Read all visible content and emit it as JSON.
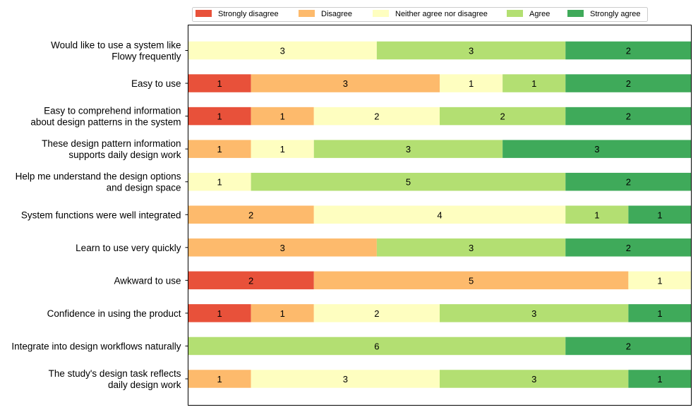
{
  "chart_data": {
    "type": "bar",
    "orientation": "horizontal",
    "stacked": true,
    "title": "",
    "xlabel": "",
    "ylabel": "",
    "xlim": [
      0,
      8
    ],
    "grid": false,
    "legend_position": "top",
    "categories": [
      [
        "Would like to use a system like",
        "Flowy frequently"
      ],
      [
        "Easy to use"
      ],
      [
        "Easy to comprehend information",
        "about design patterns in the system"
      ],
      [
        "These design pattern information",
        "supports daily design work"
      ],
      [
        "Help me understand the design options",
        "and design space"
      ],
      [
        "System functions were well integrated"
      ],
      [
        "Learn to use very quickly"
      ],
      [
        "Awkward to use"
      ],
      [
        "Confidence in using the product"
      ],
      [
        "Integrate into design workflows naturally"
      ],
      [
        "The study's design task reflects",
        "daily design work"
      ]
    ],
    "series": [
      {
        "name": "Strongly disagree",
        "color": "#e8513a",
        "values": [
          0,
          1,
          1,
          0,
          0,
          0,
          0,
          2,
          1,
          0,
          0
        ]
      },
      {
        "name": "Disagree",
        "color": "#fdba6c",
        "values": [
          0,
          3,
          1,
          1,
          0,
          2,
          3,
          5,
          1,
          0,
          1
        ]
      },
      {
        "name": "Neither agree nor disagree",
        "color": "#fefec0",
        "values": [
          3,
          1,
          2,
          1,
          1,
          4,
          0,
          1,
          2,
          0,
          3
        ]
      },
      {
        "name": "Agree",
        "color": "#b3df72",
        "values": [
          3,
          1,
          2,
          3,
          5,
          1,
          3,
          0,
          3,
          6,
          3
        ]
      },
      {
        "name": "Strongly agree",
        "color": "#3faa5a",
        "values": [
          2,
          2,
          2,
          3,
          2,
          1,
          2,
          0,
          1,
          2,
          1
        ]
      }
    ]
  }
}
